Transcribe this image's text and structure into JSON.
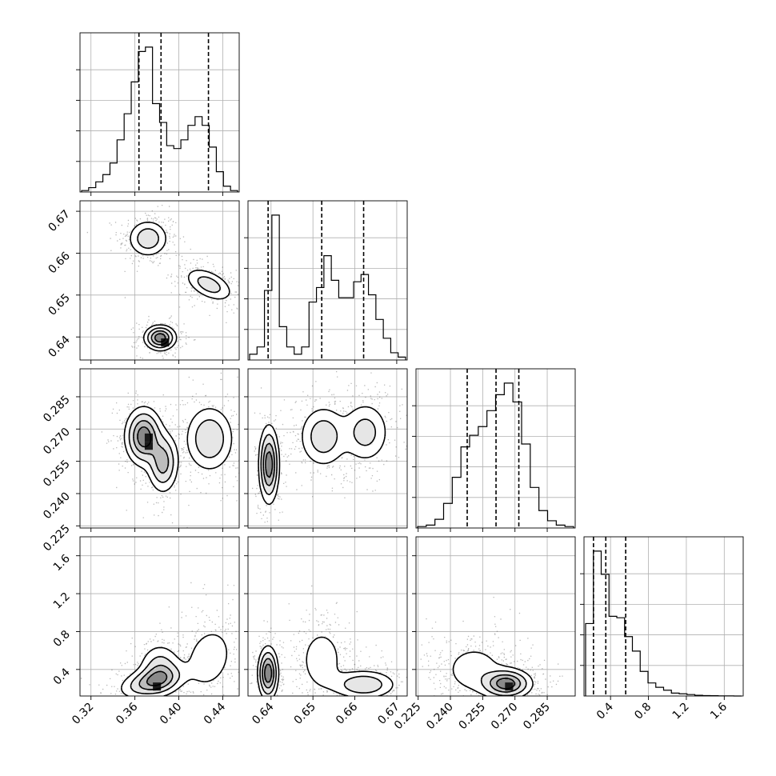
{
  "chart_data": {
    "type": "scatter",
    "subtype": "corner-plot",
    "title": "",
    "n_params": 4,
    "grid": true,
    "params": [
      {
        "index": 0,
        "range": [
          0.31,
          0.455
        ],
        "ticks": [
          0.32,
          0.36,
          0.4,
          0.44
        ],
        "tick_labels": [
          "0.32",
          "0.36",
          "0.40",
          "0.44"
        ],
        "quantiles": [
          0.3637,
          0.3838,
          0.427
        ]
      },
      {
        "index": 1,
        "range": [
          0.6345,
          0.6725
        ],
        "ticks": [
          0.64,
          0.65,
          0.66,
          0.67
        ],
        "tick_labels": [
          "0.64",
          "0.65",
          "0.66",
          "0.67"
        ],
        "quantiles": [
          0.6393,
          0.6521,
          0.6621
        ]
      },
      {
        "index": 2,
        "range": [
          0.224,
          0.298
        ],
        "ticks": [
          0.225,
          0.24,
          0.255,
          0.27,
          0.285
        ],
        "tick_labels": [
          "0.225",
          "0.240",
          "0.255",
          "0.270",
          "0.285"
        ],
        "quantiles": [
          0.2478,
          0.2612,
          0.2718
        ]
      },
      {
        "index": 3,
        "range": [
          0.12,
          1.8
        ],
        "ticks": [
          0.4,
          0.8,
          1.2,
          1.6
        ],
        "tick_labels": [
          "0.4",
          "0.8",
          "1.2",
          "1.6"
        ],
        "quantiles": [
          0.22,
          0.35,
          0.56
        ]
      }
    ],
    "histograms": [
      {
        "param": 0,
        "counts": [
          0.01,
          0.03,
          0.07,
          0.12,
          0.2,
          0.36,
          0.54,
          0.76,
          0.97,
          1.0,
          0.61,
          0.48,
          0.32,
          0.3,
          0.36,
          0.46,
          0.52,
          0.46,
          0.31,
          0.14,
          0.04,
          0.01
        ]
      },
      {
        "param": 1,
        "counts": [
          0.04,
          0.09,
          0.48,
          1.0,
          0.23,
          0.09,
          0.04,
          0.09,
          0.4,
          0.5,
          0.72,
          0.55,
          0.43,
          0.43,
          0.54,
          0.59,
          0.45,
          0.28,
          0.15,
          0.05,
          0.02
        ]
      },
      {
        "param": 2,
        "counts": [
          0.01,
          0.02,
          0.06,
          0.17,
          0.35,
          0.56,
          0.64,
          0.7,
          0.81,
          0.92,
          1.0,
          0.87,
          0.58,
          0.28,
          0.12,
          0.05,
          0.02,
          0.01
        ]
      },
      {
        "param": 3,
        "counts": [
          0.5,
          1.0,
          0.84,
          0.55,
          0.54,
          0.41,
          0.31,
          0.17,
          0.09,
          0.06,
          0.04,
          0.02,
          0.015,
          0.01,
          0.005,
          0.003,
          0.002,
          0.001,
          0.001,
          0.0
        ]
      }
    ],
    "joint_modes": [
      {
        "pair": [
          0,
          1
        ],
        "modes": [
          [
            0.372,
            0.6635,
            0.0095,
            0.0023,
            0.0,
            0.35
          ],
          [
            0.4275,
            0.6525,
            0.0115,
            0.0021,
            -0.5,
            0.3
          ],
          [
            0.383,
            0.6398,
            0.0072,
            0.0015,
            0.0,
            0.35
          ]
        ]
      },
      {
        "pair": [
          0,
          2
        ],
        "modes": [
          [
            0.368,
            0.2665,
            0.0085,
            0.0068,
            0.0,
            0.4
          ],
          [
            0.3855,
            0.2545,
            0.0072,
            0.0072,
            0.0,
            0.25
          ],
          [
            0.428,
            0.2655,
            0.0115,
            0.008,
            0.0,
            0.35
          ]
        ]
      },
      {
        "pair": [
          1,
          2
        ],
        "modes": [
          [
            0.6395,
            0.2535,
            0.0012,
            0.009,
            0.0,
            0.35
          ],
          [
            0.6525,
            0.2665,
            0.003,
            0.0075,
            0.0,
            0.35
          ],
          [
            0.6625,
            0.2685,
            0.003,
            0.0075,
            0.0,
            0.3
          ]
        ]
      },
      {
        "pair": [
          0,
          3
        ],
        "modes": [
          [
            0.376,
            0.27,
            0.015,
            0.09,
            0.4,
            0.4
          ],
          [
            0.4275,
            0.52,
            0.013,
            0.2,
            0.2,
            0.3
          ],
          [
            0.383,
            0.4,
            0.01,
            0.14,
            0.0,
            0.3
          ]
        ]
      },
      {
        "pair": [
          1,
          3
        ],
        "modes": [
          [
            0.6393,
            0.36,
            0.0012,
            0.14,
            0.0,
            0.35
          ],
          [
            0.6521,
            0.5,
            0.003,
            0.2,
            0.0,
            0.3
          ],
          [
            0.6621,
            0.24,
            0.004,
            0.08,
            0.0,
            0.35
          ]
        ]
      },
      {
        "pair": [
          2,
          3
        ],
        "modes": [
          [
            0.251,
            0.4,
            0.0085,
            0.16,
            0.0,
            0.4
          ],
          [
            0.266,
            0.25,
            0.006,
            0.08,
            0.0,
            0.6
          ]
        ]
      }
    ]
  }
}
